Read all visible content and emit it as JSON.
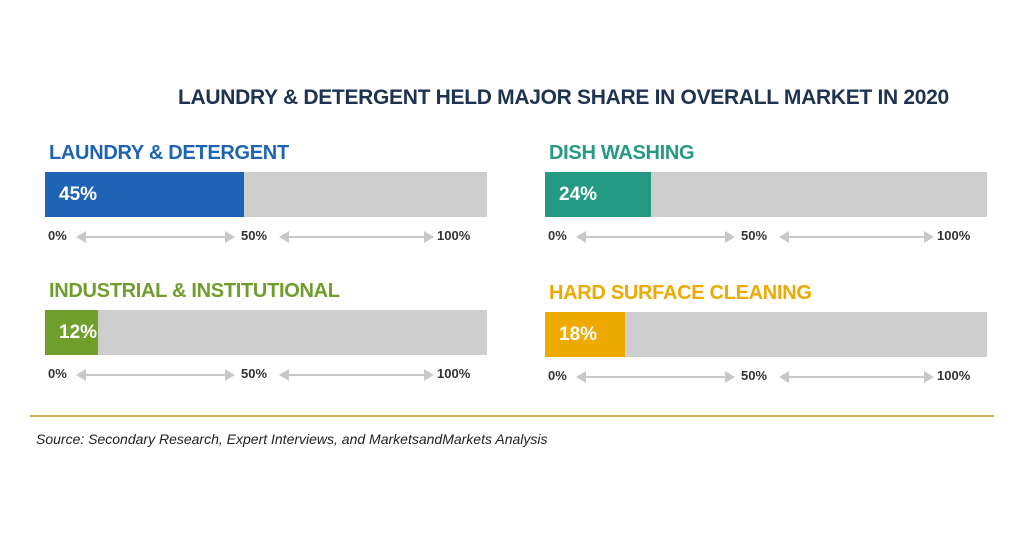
{
  "chart_data": {
    "type": "bar",
    "title": "LAUNDRY & DETERGENT HELD MAJOR SHARE IN OVERALL MARKET IN 2020",
    "xlim": [
      0,
      100
    ],
    "scale_ticks": [
      "0%",
      "50%",
      "100%"
    ],
    "series": [
      {
        "name": "LAUNDRY & DETERGENT",
        "value": 45,
        "value_label": "45%",
        "color": "#1f64b4"
      },
      {
        "name": "DISH WASHING",
        "value": 24,
        "value_label": "24%",
        "color": "#259a82"
      },
      {
        "name": "INDUSTRIAL & INSTITUTIONAL",
        "value": 12,
        "value_label": "12%",
        "color": "#6f9e2c"
      },
      {
        "name": "HARD SURFACE CLEANING",
        "value": 18,
        "value_label": "18%",
        "color": "#eeaa00"
      }
    ]
  },
  "source": "Source: Secondary Research, Expert Interviews, and MarketsandMarkets Analysis"
}
